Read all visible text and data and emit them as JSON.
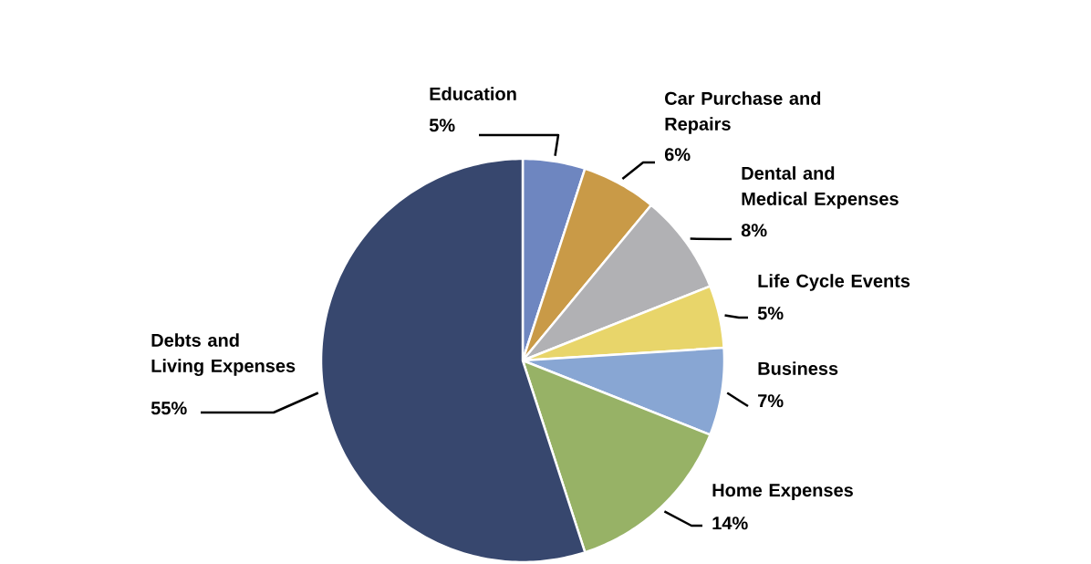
{
  "chart_data": {
    "type": "pie",
    "categories": [
      "Education",
      "Car Purchase and Repairs",
      "Dental and Medical Expenses",
      "Life Cycle Events",
      "Business",
      "Home Expenses",
      "Debts and Living Expenses"
    ],
    "values": [
      5,
      6,
      8,
      5,
      7,
      14,
      55
    ],
    "colors": [
      "#6e86c0",
      "#c99a47",
      "#b1b1b4",
      "#e8d56a",
      "#88a6d3",
      "#97b266",
      "#37476e"
    ],
    "value_labels": [
      "5%",
      "6%",
      "8%",
      "5%",
      "7%",
      "14%",
      "55%"
    ]
  }
}
